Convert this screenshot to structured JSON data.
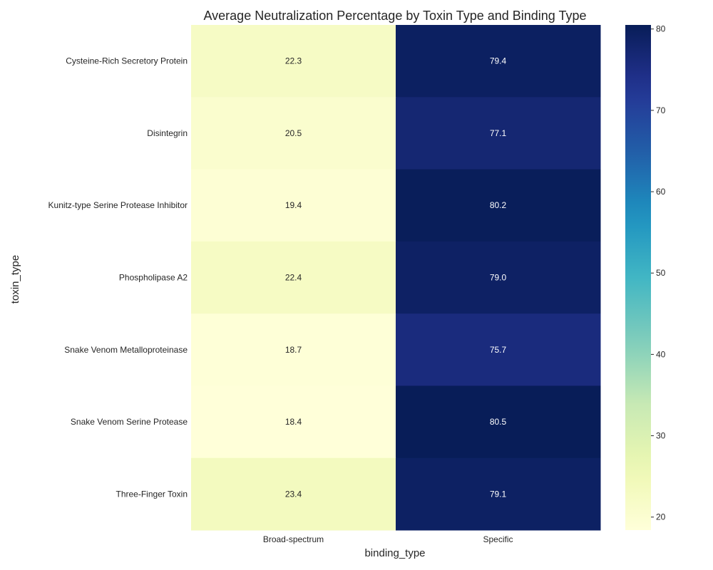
{
  "chart_data": {
    "type": "heatmap",
    "title": "Average Neutralization Percentage by Toxin Type and Binding Type",
    "xlabel": "binding_type",
    "ylabel": "toxin_type",
    "x_categories": [
      "Broad-spectrum",
      "Specific"
    ],
    "y_categories": [
      "Cysteine-Rich Secretory Protein",
      "Disintegrin",
      "Kunitz-type Serine Protease Inhibitor",
      "Phospholipase A2",
      "Snake Venom Metalloproteinase",
      "Snake Venom Serine Protease",
      "Three-Finger Toxin"
    ],
    "values": [
      [
        22.3,
        79.4
      ],
      [
        20.5,
        77.1
      ],
      [
        19.4,
        80.2
      ],
      [
        22.4,
        79.0
      ],
      [
        18.7,
        75.7
      ],
      [
        18.4,
        80.5
      ],
      [
        23.4,
        79.1
      ]
    ],
    "value_labels": [
      [
        "22.3",
        "79.4"
      ],
      [
        "20.5",
        "77.1"
      ],
      [
        "19.4",
        "80.2"
      ],
      [
        "22.4",
        "79.0"
      ],
      [
        "18.7",
        "75.7"
      ],
      [
        "18.4",
        "80.5"
      ],
      [
        "23.4",
        "79.1"
      ]
    ],
    "colormap": "YlGnBu",
    "colorbar": {
      "range": [
        18.4,
        80.5
      ],
      "ticks": [
        20,
        30,
        40,
        50,
        60,
        70,
        80
      ]
    },
    "grid": false,
    "legend": "colorbar-right"
  }
}
